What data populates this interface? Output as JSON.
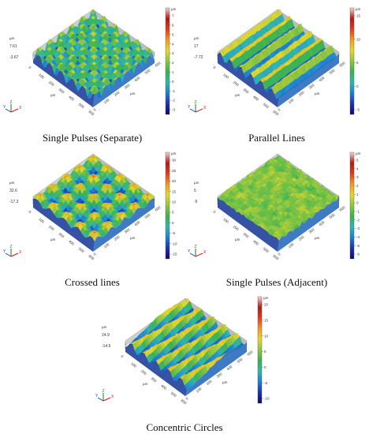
{
  "colorscale": [
    "#0b0b66",
    "#1f2fb0",
    "#1b7fd6",
    "#2fb7b0",
    "#3ab24a",
    "#8cc63f",
    "#e8d62a",
    "#f39a1f",
    "#e53a1c",
    "#b01b15",
    "#f2d6d6"
  ],
  "panels": [
    {
      "caption": "Single Pulses (Separate)",
      "unit": "µm",
      "zmax_label": "7.61",
      "zmin_label": "-3.67",
      "scale_ticks": [
        "7",
        "6",
        "5",
        "4",
        "3",
        "2",
        "1",
        "0",
        "-1",
        "-2",
        "-3"
      ],
      "x_ticks": [
        "0",
        "100",
        "200",
        "300",
        "400",
        "500",
        "600"
      ],
      "y_ticks": [
        "0",
        "100",
        "200",
        "300",
        "400",
        "500",
        "600"
      ],
      "axis_unit": "µm",
      "pattern": "dots",
      "triad": [
        "Y",
        "Z",
        "X"
      ]
    },
    {
      "caption": "Parallel Lines",
      "unit": "µm",
      "zmax_label": "17",
      "zmin_label": "-7.72",
      "scale_ticks": [
        "15",
        "10",
        "5",
        "0",
        "-5"
      ],
      "x_ticks": [
        "0",
        "100",
        "200",
        "300",
        "400",
        "500",
        "600"
      ],
      "y_ticks": [
        "0",
        "100",
        "200",
        "300",
        "400",
        "500",
        "600"
      ],
      "axis_unit": "µm",
      "pattern": "lines",
      "triad": [
        "Y",
        "Z",
        "X"
      ]
    },
    {
      "caption": "Crossed lines",
      "unit": "µm",
      "zmax_label": "32.6",
      "zmin_label": "-17.3",
      "scale_ticks": [
        "30",
        "25",
        "20",
        "15",
        "10",
        "5",
        "0",
        "-5",
        "-10",
        "-15"
      ],
      "x_ticks": [
        "0",
        "100",
        "200",
        "300",
        "400",
        "500",
        "600"
      ],
      "y_ticks": [
        "0",
        "100",
        "200",
        "300",
        "400",
        "500",
        "600"
      ],
      "axis_unit": "µm",
      "pattern": "grid",
      "triad": [
        "Y",
        "Z",
        "X"
      ]
    },
    {
      "caption": "Single Pulses (Adjacent)",
      "unit": "µm",
      "zmax_label": "5",
      "zmin_label": "-5",
      "scale_ticks": [
        "5",
        "4",
        "3",
        "2",
        "1",
        "0",
        "-1",
        "-2",
        "-3",
        "-4",
        "-5",
        "-6"
      ],
      "x_ticks": [
        "0",
        "100",
        "200",
        "300",
        "400",
        "500",
        "600"
      ],
      "y_ticks": [
        "0",
        "100",
        "200",
        "300",
        "400",
        "500",
        "600"
      ],
      "axis_unit": "µm",
      "pattern": "noise",
      "triad": [
        "Y",
        "Z",
        "X"
      ]
    },
    {
      "caption": "Concentric Circles",
      "unit": "µm",
      "zmax_label": "24.9",
      "zmin_label": "-14.6",
      "scale_ticks": [
        "20",
        "15",
        "10",
        "5",
        "0",
        "-5",
        "-10"
      ],
      "x_ticks": [
        "0",
        "100",
        "200",
        "300",
        "400",
        "500",
        "600"
      ],
      "y_ticks": [
        "0",
        "100",
        "200",
        "300",
        "400",
        "500",
        "600"
      ],
      "axis_unit": "µm",
      "pattern": "waves",
      "triad": [
        "Y",
        "Z",
        "X"
      ]
    }
  ]
}
